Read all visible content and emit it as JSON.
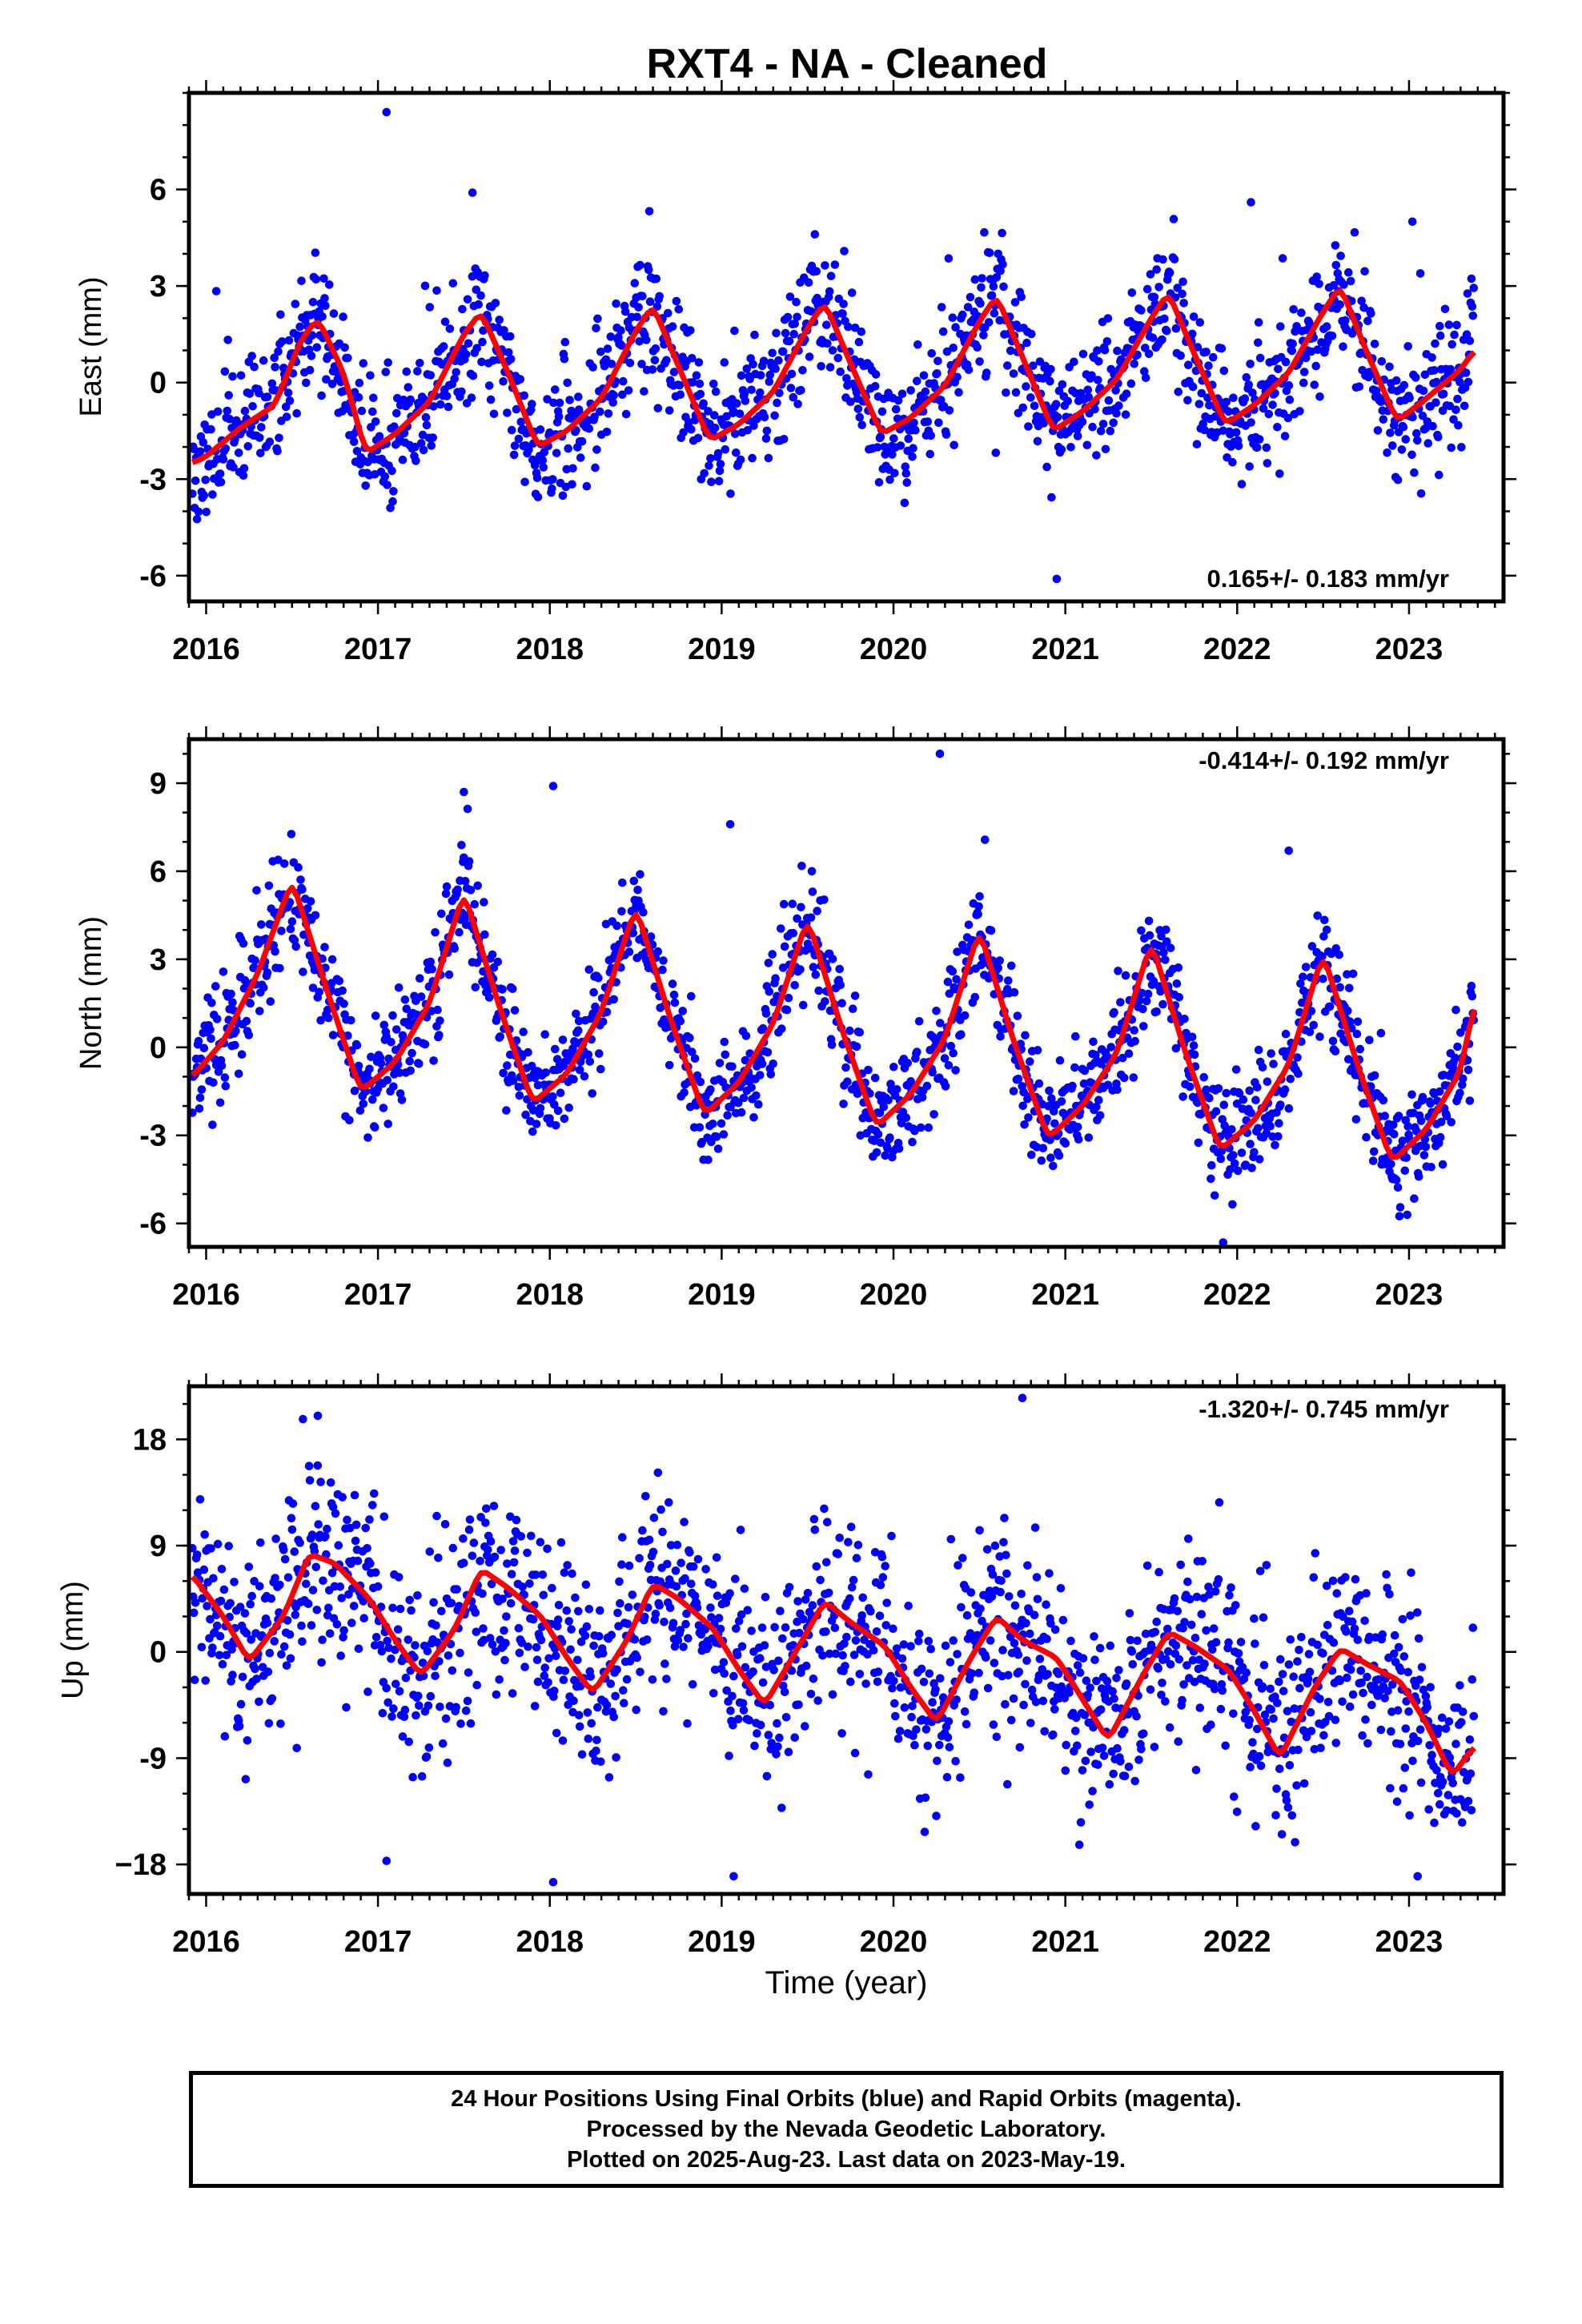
{
  "title": "RXT4  - NA - Cleaned",
  "footer": {
    "line1": "24 Hour Positions Using Final Orbits (blue) and Rapid Orbits (magenta).",
    "line2": "Processed by the Nevada Geodetic Laboratory.",
    "line3": "Plotted on 2025-Aug-23. Last data on 2023-May-19."
  },
  "colors": {
    "data_points": "#0000ff",
    "fit_line": "#ff0000",
    "frame": "#000000"
  },
  "chart_data": [
    {
      "type": "scatter",
      "ylabel": "East (mm)",
      "xlabel": "",
      "xlim": [
        2015.9,
        2023.55
      ],
      "ylim": [
        -6.8,
        9.0
      ],
      "xticks": [
        2016,
        2017,
        2018,
        2019,
        2020,
        2021,
        2022,
        2023
      ],
      "yticks": [
        -6,
        -3,
        0,
        3,
        6
      ],
      "ytick_labels": [
        "-6",
        "-3",
        "0",
        "3",
        "6"
      ],
      "rate": "0.165+/- 0.183 mm/yr",
      "rate_position": "bottom-right",
      "grid": false,
      "data_start": 2015.92,
      "data_end": 2023.38,
      "series": [
        {
          "style": "points",
          "color": "#0000ff",
          "sample_step_yr": 0.0045,
          "noise_mm": 1.0,
          "seed": 11,
          "outliers": [
            [
              2017.05,
              8.4
            ],
            [
              2023.02,
              5.0
            ],
            [
              2020.95,
              -6.1
            ],
            [
              2017.55,
              5.9
            ],
            [
              2022.08,
              5.6
            ]
          ]
        },
        {
          "style": "line",
          "color": "#ff0000",
          "x": [
            2015.92,
            2016.0,
            2016.2,
            2016.4,
            2016.55,
            2016.65,
            2016.8,
            2016.93,
            2017.1,
            2017.3,
            2017.5,
            2017.6,
            2017.75,
            2017.93,
            2018.1,
            2018.3,
            2018.5,
            2018.6,
            2018.75,
            2018.93,
            2019.1,
            2019.3,
            2019.5,
            2019.6,
            2019.75,
            2019.93,
            2020.1,
            2020.3,
            2020.5,
            2020.6,
            2020.75,
            2020.93,
            2021.1,
            2021.3,
            2021.5,
            2021.6,
            2021.75,
            2021.93,
            2022.1,
            2022.3,
            2022.5,
            2022.6,
            2022.75,
            2022.93,
            2023.1,
            2023.3,
            2023.38
          ],
          "y": [
            -2.5,
            -2.3,
            -1.4,
            -0.7,
            1.3,
            2.0,
            0.3,
            -2.2,
            -1.6,
            -0.6,
            1.5,
            2.2,
            0.4,
            -2.0,
            -1.5,
            -0.5,
            1.6,
            2.4,
            0.5,
            -1.8,
            -1.3,
            -0.3,
            1.7,
            2.5,
            0.6,
            -1.6,
            -1.1,
            -0.1,
            1.9,
            2.7,
            0.8,
            -1.5,
            -0.9,
            0.1,
            2.0,
            2.8,
            0.9,
            -1.3,
            -0.7,
            0.3,
            2.2,
            3.0,
            1.0,
            -1.2,
            -0.5,
            0.4,
            1.0
          ]
        }
      ]
    },
    {
      "type": "scatter",
      "ylabel": "North (mm)",
      "xlabel": "",
      "xlim": [
        2015.9,
        2023.55
      ],
      "ylim": [
        -6.8,
        10.5
      ],
      "xticks": [
        2016,
        2017,
        2018,
        2019,
        2020,
        2021,
        2022,
        2023
      ],
      "yticks": [
        -6,
        -3,
        0,
        3,
        6,
        9
      ],
      "ytick_labels": [
        "-6",
        "-3",
        "0",
        "3",
        "6",
        "9"
      ],
      "rate": "-0.414+/- 0.192 mm/yr",
      "rate_position": "top-right",
      "grid": false,
      "data_start": 2015.92,
      "data_end": 2023.38,
      "series": [
        {
          "style": "points",
          "color": "#0000ff",
          "sample_step_yr": 0.0045,
          "noise_mm": 0.95,
          "seed": 23,
          "outliers": [
            [
              2020.27,
              10.0
            ],
            [
              2018.02,
              8.9
            ],
            [
              2017.5,
              8.7
            ],
            [
              2019.05,
              7.6
            ],
            [
              2022.3,
              6.7
            ]
          ]
        },
        {
          "style": "line",
          "color": "#ff0000",
          "x": [
            2015.92,
            2016.1,
            2016.3,
            2016.5,
            2016.7,
            2016.9,
            2017.1,
            2017.3,
            2017.5,
            2017.7,
            2017.9,
            2018.1,
            2018.3,
            2018.5,
            2018.7,
            2018.9,
            2019.1,
            2019.3,
            2019.5,
            2019.7,
            2019.9,
            2020.1,
            2020.3,
            2020.5,
            2020.7,
            2020.9,
            2021.1,
            2021.3,
            2021.5,
            2021.7,
            2021.9,
            2022.1,
            2022.3,
            2022.5,
            2022.7,
            2022.9,
            2023.1,
            2023.3,
            2023.38
          ],
          "y": [
            -1.0,
            0.2,
            2.5,
            5.7,
            2.0,
            -1.5,
            -0.5,
            1.5,
            5.3,
            1.5,
            -1.9,
            -0.9,
            1.2,
            4.8,
            1.0,
            -2.3,
            -1.2,
            0.8,
            4.4,
            0.6,
            -2.7,
            -1.6,
            0.3,
            4.0,
            0.2,
            -3.1,
            -2.0,
            -0.2,
            3.6,
            -0.2,
            -3.5,
            -2.5,
            -0.6,
            3.2,
            -0.6,
            -3.9,
            -2.8,
            -0.8,
            1.5
          ]
        }
      ]
    },
    {
      "type": "scatter",
      "ylabel": "Up (mm)",
      "xlabel": "Time (year)",
      "xlim": [
        2015.9,
        2023.55
      ],
      "ylim": [
        -20.5,
        22.5
      ],
      "xticks": [
        2016,
        2017,
        2018,
        2019,
        2020,
        2021,
        2022,
        2023
      ],
      "yticks": [
        -18,
        -9,
        0,
        9,
        18
      ],
      "ytick_labels": [
        "−18",
        "-9",
        "0",
        "9",
        "18"
      ],
      "rate": "-1.320+/- 0.745 mm/yr",
      "rate_position": "top-right",
      "grid": false,
      "data_start": 2015.92,
      "data_end": 2023.38,
      "series": [
        {
          "style": "points",
          "color": "#0000ff",
          "sample_step_yr": 0.0045,
          "noise_mm": 4.2,
          "seed": 37,
          "outliers": [
            [
              2020.75,
              21.5
            ],
            [
              2016.65,
              20.0
            ],
            [
              2019.07,
              -19.0
            ],
            [
              2018.02,
              -19.5
            ],
            [
              2023.05,
              -19.0
            ],
            [
              2017.05,
              -17.7
            ]
          ]
        },
        {
          "style": "line",
          "color": "#ff0000",
          "x": [
            2015.92,
            2016.1,
            2016.25,
            2016.45,
            2016.6,
            2016.75,
            2016.95,
            2017.1,
            2017.25,
            2017.45,
            2017.6,
            2017.75,
            2017.95,
            2018.1,
            2018.25,
            2018.45,
            2018.6,
            2018.75,
            2018.95,
            2019.1,
            2019.25,
            2019.45,
            2019.6,
            2019.75,
            2019.95,
            2020.1,
            2020.25,
            2020.45,
            2020.6,
            2020.75,
            2020.95,
            2021.1,
            2021.25,
            2021.45,
            2021.6,
            2021.75,
            2021.95,
            2022.1,
            2022.25,
            2022.45,
            2022.6,
            2022.75,
            2022.95,
            2023.1,
            2023.25,
            2023.38
          ],
          "y": [
            6.5,
            3.0,
            -0.8,
            3.0,
            8.3,
            7.5,
            4.5,
            1.0,
            -2.0,
            2.0,
            7.0,
            5.5,
            3.0,
            -0.5,
            -3.5,
            1.0,
            5.8,
            4.5,
            2.0,
            -1.5,
            -4.5,
            0.5,
            4.3,
            2.5,
            0.5,
            -3.0,
            -6.0,
            -0.5,
            3.0,
            1.0,
            -0.5,
            -4.0,
            -7.5,
            -2.0,
            1.7,
            0.5,
            -1.5,
            -5.0,
            -9.0,
            -3.0,
            0.3,
            -1.0,
            -2.5,
            -6.0,
            -10.5,
            -8.0
          ]
        }
      ]
    }
  ]
}
